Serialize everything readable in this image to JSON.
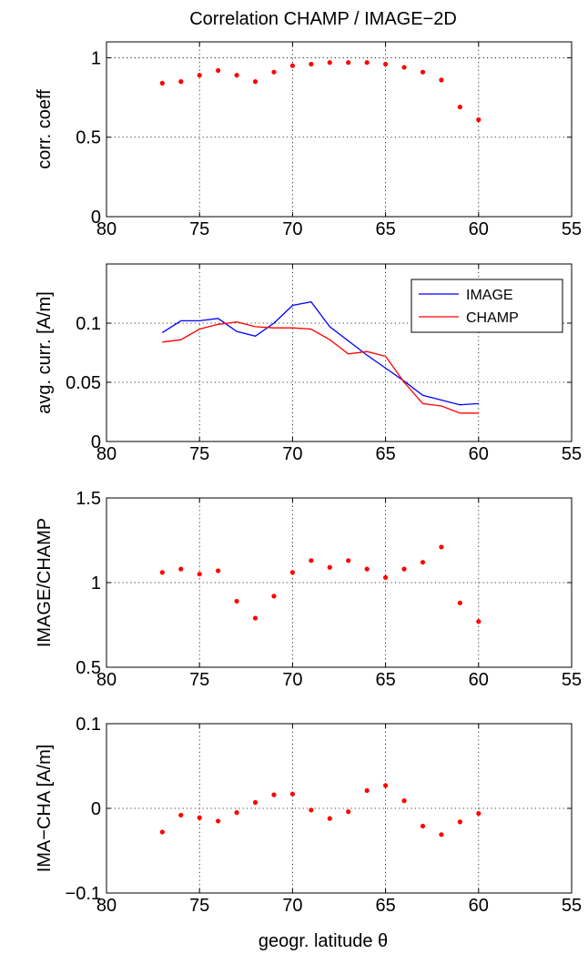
{
  "figure_title": "Correlation CHAMP / IMAGE−2D",
  "xlabel": "geogr. latitude θ",
  "colors": {
    "image": "#0000ff",
    "champ": "#ff0000",
    "axes": "#000000"
  },
  "chart_data": [
    {
      "type": "scatter",
      "ylabel": "corr. coeff",
      "xlim": [
        80,
        55
      ],
      "ylim": [
        0,
        1.1
      ],
      "xticks": [
        80,
        75,
        70,
        65,
        60,
        55
      ],
      "yticks": [
        0,
        0.5,
        1
      ],
      "ytick_labels": [
        "0",
        "0.5",
        "1"
      ],
      "grid": true,
      "series": [
        {
          "color": "#ff0000",
          "x": [
            77,
            76,
            75,
            74,
            73,
            72,
            71,
            70,
            69,
            68,
            67,
            66,
            65,
            64,
            63,
            62,
            61,
            60
          ],
          "y": [
            0.84,
            0.85,
            0.89,
            0.92,
            0.89,
            0.85,
            0.91,
            0.95,
            0.96,
            0.97,
            0.97,
            0.97,
            0.96,
            0.94,
            0.91,
            0.86,
            0.69,
            0.61
          ]
        }
      ]
    },
    {
      "type": "line",
      "ylabel": "avg. curr. [A/m]",
      "xlim": [
        80,
        55
      ],
      "ylim": [
        0,
        0.15
      ],
      "xticks": [
        80,
        75,
        70,
        65,
        60,
        55
      ],
      "yticks": [
        0,
        0.05,
        0.1
      ],
      "ytick_labels": [
        "0",
        "0.05",
        "0.1"
      ],
      "grid": true,
      "legend": "top-right",
      "series": [
        {
          "name": "IMAGE",
          "color": "#0000ff",
          "x": [
            77,
            76,
            75,
            74,
            73,
            72,
            71,
            70,
            69,
            68,
            67,
            66,
            65,
            64,
            63,
            62,
            61,
            60
          ],
          "y": [
            0.092,
            0.102,
            0.102,
            0.104,
            0.093,
            0.089,
            0.1,
            0.115,
            0.118,
            0.097,
            0.085,
            0.073,
            0.062,
            0.051,
            0.039,
            0.035,
            0.031,
            0.032
          ]
        },
        {
          "name": "CHAMP",
          "color": "#ff0000",
          "x": [
            77,
            76,
            75,
            74,
            73,
            72,
            71,
            70,
            69,
            68,
            67,
            66,
            65,
            64,
            63,
            62,
            61,
            60
          ],
          "y": [
            0.084,
            0.086,
            0.095,
            0.099,
            0.101,
            0.097,
            0.096,
            0.096,
            0.095,
            0.086,
            0.074,
            0.076,
            0.072,
            0.05,
            0.032,
            0.03,
            0.024,
            0.024
          ]
        }
      ]
    },
    {
      "type": "scatter",
      "ylabel": "IMAGE/CHAMP",
      "xlim": [
        80,
        55
      ],
      "ylim": [
        0.5,
        1.5
      ],
      "xticks": [
        80,
        75,
        70,
        65,
        60,
        55
      ],
      "yticks": [
        0.5,
        1,
        1.5
      ],
      "ytick_labels": [
        "0.5",
        "1",
        "1.5"
      ],
      "grid": true,
      "series": [
        {
          "color": "#ff0000",
          "x": [
            77,
            76,
            75,
            74,
            73,
            72,
            71,
            70,
            69,
            68,
            67,
            66,
            65,
            64,
            63,
            62,
            61,
            60
          ],
          "y": [
            1.06,
            1.08,
            1.05,
            1.07,
            0.89,
            0.79,
            0.92,
            1.06,
            1.13,
            1.09,
            1.13,
            1.08,
            1.03,
            1.08,
            1.12,
            1.21,
            0.88,
            0.77
          ]
        }
      ]
    },
    {
      "type": "scatter",
      "ylabel": "IMA−CHA [A/m]",
      "xlim": [
        80,
        55
      ],
      "ylim": [
        -0.1,
        0.1
      ],
      "xticks": [
        80,
        75,
        70,
        65,
        60,
        55
      ],
      "yticks": [
        -0.1,
        0,
        0.1
      ],
      "ytick_labels": [
        "−0.1",
        "0",
        "0.1"
      ],
      "grid": true,
      "series": [
        {
          "color": "#ff0000",
          "x": [
            77,
            76,
            75,
            74,
            73,
            72,
            71,
            70,
            69,
            68,
            67,
            66,
            65,
            64,
            63,
            62,
            61,
            60
          ],
          "y": [
            -0.028,
            -0.008,
            -0.011,
            -0.015,
            -0.005,
            0.007,
            0.016,
            0.017,
            -0.002,
            -0.012,
            -0.004,
            0.021,
            0.027,
            0.009,
            -0.021,
            -0.031,
            -0.016,
            -0.006
          ]
        }
      ]
    }
  ]
}
